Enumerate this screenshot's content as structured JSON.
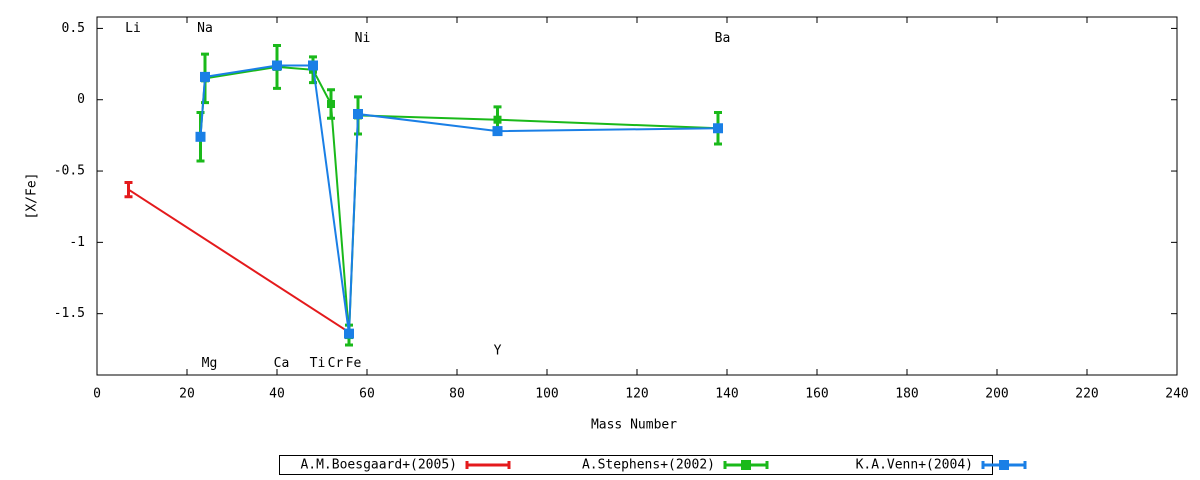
{
  "chart_data": {
    "type": "errorline",
    "xlabel": "Mass Number",
    "ylabel": "[X/Fe]",
    "xlim": [
      0,
      240
    ],
    "xticks": [
      0,
      20,
      40,
      60,
      80,
      100,
      120,
      140,
      160,
      180,
      200,
      220,
      240
    ],
    "ylim": [
      -1.93,
      0.58
    ],
    "yticks": [
      0.5,
      0,
      -0.5,
      -1,
      -1.5
    ],
    "series": [
      {
        "name": "A.M.Boesgaard+(2005)",
        "color": "#e41a1c",
        "marker": "none",
        "x": [
          7,
          56
        ],
        "values": [
          -0.63,
          -1.63
        ],
        "errors": [
          0.05,
          0
        ]
      },
      {
        "name": "A.Stephens+(2002)",
        "color": "#1ab91a",
        "marker": "square",
        "x": [
          23,
          24,
          40,
          48,
          52,
          56,
          58,
          89,
          138
        ],
        "values": [
          -0.26,
          0.15,
          0.23,
          0.21,
          -0.03,
          -1.65,
          -0.11,
          -0.14,
          -0.2
        ],
        "errors": [
          0.17,
          0.17,
          0.15,
          0.09,
          0.1,
          0.07,
          0.13,
          0.09,
          0.11
        ]
      },
      {
        "name": "K.A.Venn+(2004)",
        "color": "#1a7fe6",
        "marker": "square",
        "x": [
          23,
          24,
          40,
          48,
          56,
          58,
          89,
          138
        ],
        "values": [
          -0.26,
          0.16,
          0.24,
          0.24,
          -1.64,
          -0.1,
          -0.22,
          -0.2
        ]
      }
    ],
    "annotations": [
      {
        "text": "Li",
        "x": 8,
        "y": 0.5
      },
      {
        "text": "Na",
        "x": 24,
        "y": 0.5
      },
      {
        "text": "Ni",
        "x": 59,
        "y": 0.43
      },
      {
        "text": "Ba",
        "x": 139,
        "y": 0.43
      },
      {
        "text": "Mg",
        "x": 25,
        "y": -1.85
      },
      {
        "text": "Ca",
        "x": 41,
        "y": -1.85
      },
      {
        "text": "Ti",
        "x": 49,
        "y": -1.85
      },
      {
        "text": "Cr",
        "x": 53,
        "y": -1.85
      },
      {
        "text": "Fe",
        "x": 57,
        "y": -1.85
      },
      {
        "text": "Y",
        "x": 89,
        "y": -1.76
      }
    ]
  }
}
